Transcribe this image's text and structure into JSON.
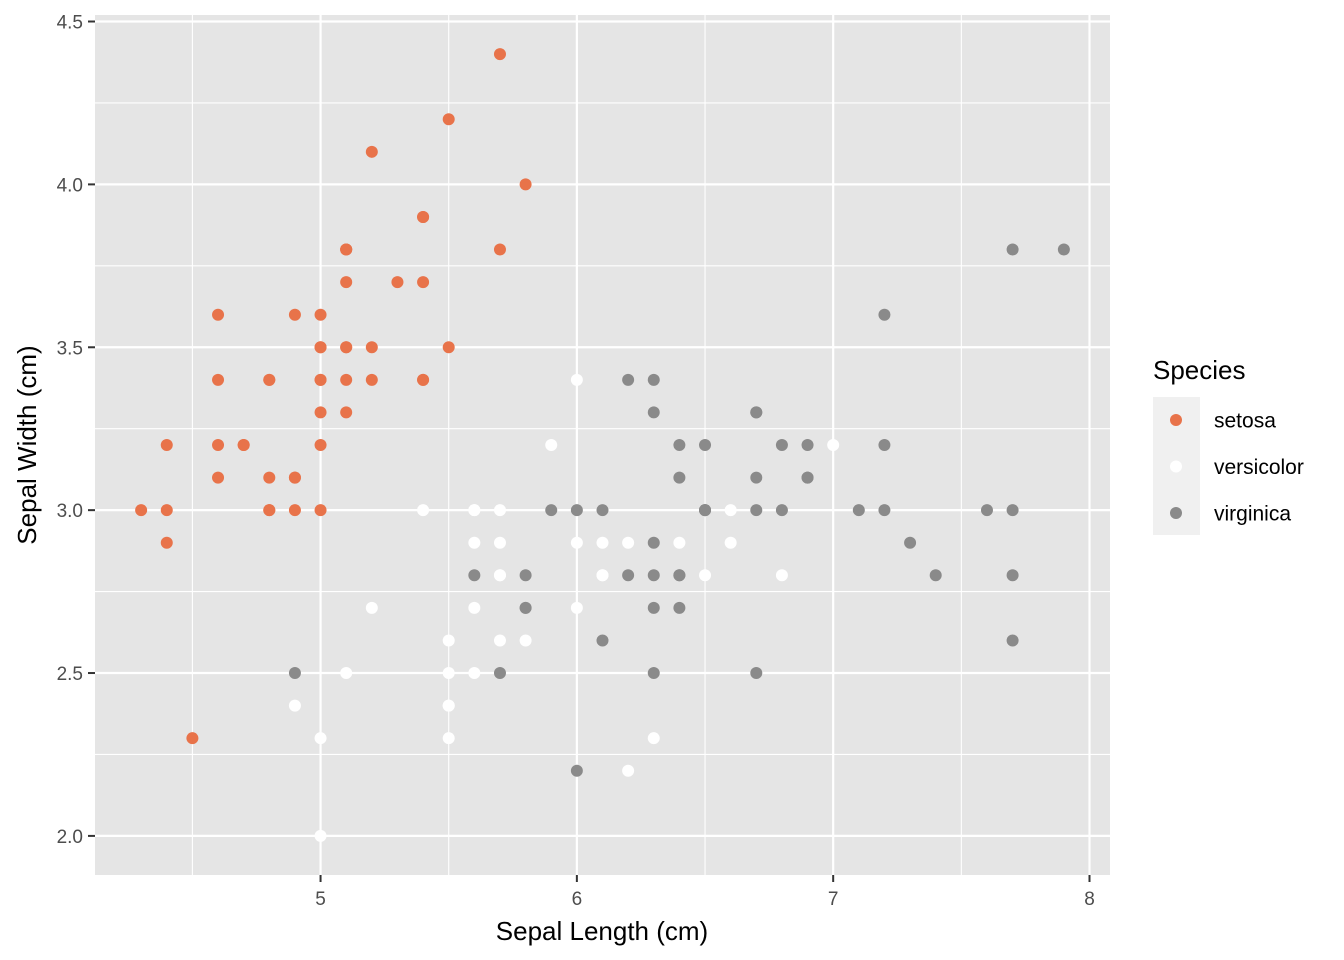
{
  "chart_data": {
    "type": "scatter",
    "xlabel": "Sepal Length (cm)",
    "ylabel": "Sepal Width (cm)",
    "xlim": [
      4.12,
      8.08
    ],
    "ylim": [
      1.88,
      4.52
    ],
    "x_ticks": [
      5,
      6,
      7,
      8
    ],
    "x_tick_labels": [
      "5",
      "6",
      "7",
      "8"
    ],
    "y_ticks": [
      2.0,
      2.5,
      3.0,
      3.5,
      4.0,
      4.5
    ],
    "y_tick_labels": [
      "2.0",
      "2.5",
      "3.0",
      "3.5",
      "4.0",
      "4.5"
    ],
    "grid": true,
    "legend": {
      "title": "Species",
      "placement": "right",
      "entries": [
        "setosa",
        "versicolor",
        "virginica"
      ]
    },
    "colors": {
      "panel_background": "#e5e5e5",
      "grid_line": "#ffffff",
      "setosa": "#e8734a",
      "versicolor": "#ffffff",
      "virginica": "#8a8a8a"
    },
    "series": [
      {
        "name": "setosa",
        "points": [
          [
            5.1,
            3.5
          ],
          [
            4.9,
            3.0
          ],
          [
            4.7,
            3.2
          ],
          [
            4.6,
            3.1
          ],
          [
            5.0,
            3.6
          ],
          [
            5.4,
            3.9
          ],
          [
            4.6,
            3.4
          ],
          [
            5.0,
            3.4
          ],
          [
            4.4,
            2.9
          ],
          [
            4.9,
            3.1
          ],
          [
            5.4,
            3.7
          ],
          [
            4.8,
            3.4
          ],
          [
            4.8,
            3.0
          ],
          [
            4.3,
            3.0
          ],
          [
            5.8,
            4.0
          ],
          [
            5.7,
            4.4
          ],
          [
            5.4,
            3.9
          ],
          [
            5.1,
            3.5
          ],
          [
            5.7,
            3.8
          ],
          [
            5.1,
            3.8
          ],
          [
            5.4,
            3.4
          ],
          [
            5.1,
            3.7
          ],
          [
            4.6,
            3.6
          ],
          [
            5.1,
            3.3
          ],
          [
            4.8,
            3.4
          ],
          [
            5.0,
            3.0
          ],
          [
            5.0,
            3.4
          ],
          [
            5.2,
            3.5
          ],
          [
            5.2,
            3.4
          ],
          [
            4.7,
            3.2
          ],
          [
            4.8,
            3.1
          ],
          [
            5.4,
            3.4
          ],
          [
            5.2,
            4.1
          ],
          [
            5.5,
            4.2
          ],
          [
            4.9,
            3.1
          ],
          [
            5.0,
            3.2
          ],
          [
            5.5,
            3.5
          ],
          [
            4.9,
            3.6
          ],
          [
            4.4,
            3.0
          ],
          [
            5.1,
            3.4
          ],
          [
            5.0,
            3.5
          ],
          [
            4.5,
            2.3
          ],
          [
            4.4,
            3.2
          ],
          [
            5.0,
            3.5
          ],
          [
            5.1,
            3.8
          ],
          [
            4.8,
            3.0
          ],
          [
            5.1,
            3.8
          ],
          [
            4.6,
            3.2
          ],
          [
            5.3,
            3.7
          ],
          [
            5.0,
            3.3
          ]
        ]
      },
      {
        "name": "versicolor",
        "points": [
          [
            7.0,
            3.2
          ],
          [
            6.4,
            3.2
          ],
          [
            6.9,
            3.1
          ],
          [
            5.5,
            2.3
          ],
          [
            6.5,
            2.8
          ],
          [
            5.7,
            2.8
          ],
          [
            6.3,
            3.3
          ],
          [
            4.9,
            2.4
          ],
          [
            6.6,
            2.9
          ],
          [
            5.2,
            2.7
          ],
          [
            5.0,
            2.0
          ],
          [
            5.9,
            3.0
          ],
          [
            6.0,
            2.2
          ],
          [
            6.1,
            2.9
          ],
          [
            5.6,
            2.9
          ],
          [
            6.7,
            3.1
          ],
          [
            5.6,
            3.0
          ],
          [
            5.8,
            2.7
          ],
          [
            6.2,
            2.2
          ],
          [
            5.6,
            2.5
          ],
          [
            5.9,
            3.2
          ],
          [
            6.1,
            2.8
          ],
          [
            6.3,
            2.5
          ],
          [
            6.1,
            2.8
          ],
          [
            6.4,
            2.9
          ],
          [
            6.6,
            3.0
          ],
          [
            6.8,
            2.8
          ],
          [
            6.7,
            3.0
          ],
          [
            6.0,
            2.9
          ],
          [
            5.7,
            2.6
          ],
          [
            5.5,
            2.4
          ],
          [
            5.5,
            2.4
          ],
          [
            5.8,
            2.7
          ],
          [
            6.0,
            2.7
          ],
          [
            5.4,
            3.0
          ],
          [
            6.0,
            3.4
          ],
          [
            6.7,
            3.1
          ],
          [
            6.3,
            2.3
          ],
          [
            5.6,
            3.0
          ],
          [
            5.5,
            2.5
          ],
          [
            5.5,
            2.6
          ],
          [
            6.1,
            3.0
          ],
          [
            5.8,
            2.6
          ],
          [
            5.0,
            2.3
          ],
          [
            5.6,
            2.7
          ],
          [
            5.7,
            3.0
          ],
          [
            5.7,
            2.9
          ],
          [
            6.2,
            2.9
          ],
          [
            5.1,
            2.5
          ],
          [
            5.7,
            2.8
          ]
        ]
      },
      {
        "name": "virginica",
        "points": [
          [
            6.3,
            3.3
          ],
          [
            5.8,
            2.7
          ],
          [
            7.1,
            3.0
          ],
          [
            6.3,
            2.9
          ],
          [
            6.5,
            3.0
          ],
          [
            7.6,
            3.0
          ],
          [
            4.9,
            2.5
          ],
          [
            7.3,
            2.9
          ],
          [
            6.7,
            2.5
          ],
          [
            7.2,
            3.6
          ],
          [
            6.5,
            3.2
          ],
          [
            6.4,
            2.7
          ],
          [
            6.8,
            3.0
          ],
          [
            5.7,
            2.5
          ],
          [
            5.8,
            2.8
          ],
          [
            6.4,
            3.2
          ],
          [
            6.5,
            3.0
          ],
          [
            7.7,
            3.8
          ],
          [
            7.7,
            2.6
          ],
          [
            6.0,
            2.2
          ],
          [
            6.9,
            3.2
          ],
          [
            5.6,
            2.8
          ],
          [
            7.7,
            2.8
          ],
          [
            6.3,
            2.7
          ],
          [
            6.7,
            3.3
          ],
          [
            7.2,
            3.2
          ],
          [
            6.2,
            2.8
          ],
          [
            6.1,
            3.0
          ],
          [
            6.4,
            2.8
          ],
          [
            7.2,
            3.0
          ],
          [
            7.4,
            2.8
          ],
          [
            7.9,
            3.8
          ],
          [
            6.4,
            2.8
          ],
          [
            6.3,
            2.8
          ],
          [
            6.1,
            2.6
          ],
          [
            7.7,
            3.0
          ],
          [
            6.3,
            3.4
          ],
          [
            6.4,
            3.1
          ],
          [
            6.0,
            3.0
          ],
          [
            6.9,
            3.1
          ],
          [
            6.7,
            3.1
          ],
          [
            6.9,
            3.1
          ],
          [
            5.8,
            2.7
          ],
          [
            6.8,
            3.2
          ],
          [
            6.7,
            3.3
          ],
          [
            6.7,
            3.0
          ],
          [
            6.3,
            2.5
          ],
          [
            6.5,
            3.0
          ],
          [
            6.2,
            3.4
          ],
          [
            5.9,
            3.0
          ]
        ]
      }
    ]
  }
}
